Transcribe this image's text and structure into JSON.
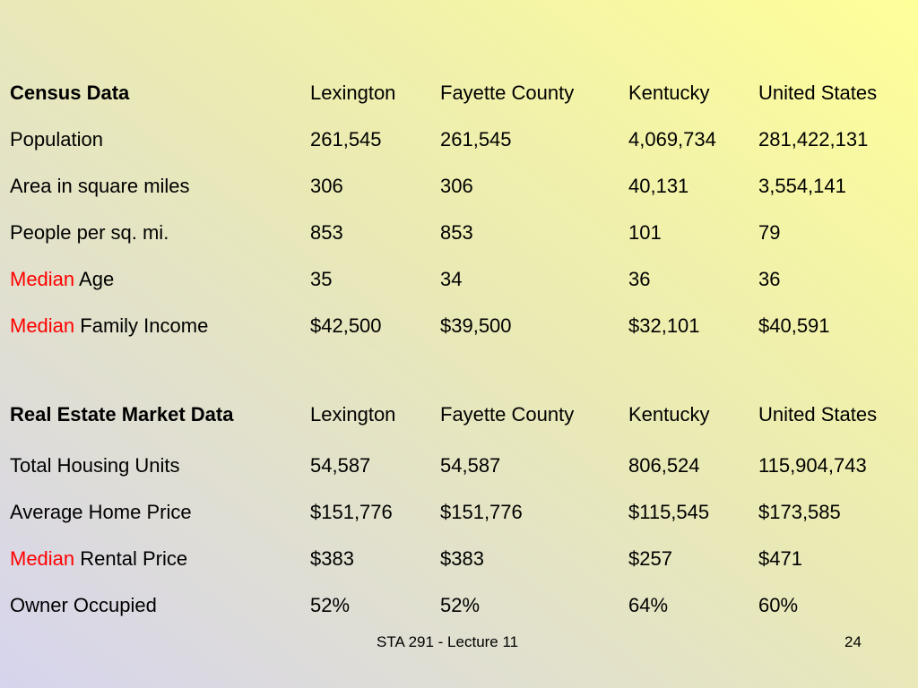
{
  "census": {
    "header": [
      "Census Data",
      "Lexington",
      "Fayette County",
      "Kentucky",
      "United States"
    ],
    "rows": [
      {
        "label_red": "",
        "label": "Population",
        "values": [
          "261,545",
          "261,545",
          "4,069,734",
          "281,422,131"
        ]
      },
      {
        "label_red": "",
        "label": "Area in square miles",
        "values": [
          "306",
          "306",
          "40,131",
          "3,554,141"
        ]
      },
      {
        "label_red": "",
        "label": "People per sq. mi.",
        "values": [
          "853",
          "853",
          "101",
          "79"
        ]
      },
      {
        "label_red": "Median",
        "label": " Age",
        "values": [
          "35",
          "34",
          "36",
          "36"
        ]
      },
      {
        "label_red": "Median",
        "label": " Family Income",
        "values": [
          "$42,500",
          "$39,500",
          "$32,101",
          "$40,591"
        ]
      }
    ]
  },
  "real_estate": {
    "header": [
      "Real Estate Market Data",
      "Lexington",
      "Fayette County",
      "Kentucky",
      "United States"
    ],
    "rows": [
      {
        "label_red": "",
        "label": "Total Housing Units",
        "values": [
          "54,587",
          "54,587",
          "806,524",
          "115,904,743"
        ]
      },
      {
        "label_red": "",
        "label": "Average Home Price",
        "values": [
          "$151,776",
          "$151,776",
          "$115,545",
          "$173,585"
        ]
      },
      {
        "label_red": "Median",
        "label": " Rental Price",
        "values": [
          "$383",
          "$383",
          "$257",
          "$471"
        ]
      },
      {
        "label_red": "",
        "label": "Owner Occupied",
        "values": [
          "52%",
          "52%",
          "64%",
          "60%"
        ]
      }
    ]
  },
  "footer": {
    "course": "STA 291 - Lecture 11",
    "page": "24"
  },
  "colors": {
    "highlight": "#ff0000",
    "text": "#000000"
  }
}
